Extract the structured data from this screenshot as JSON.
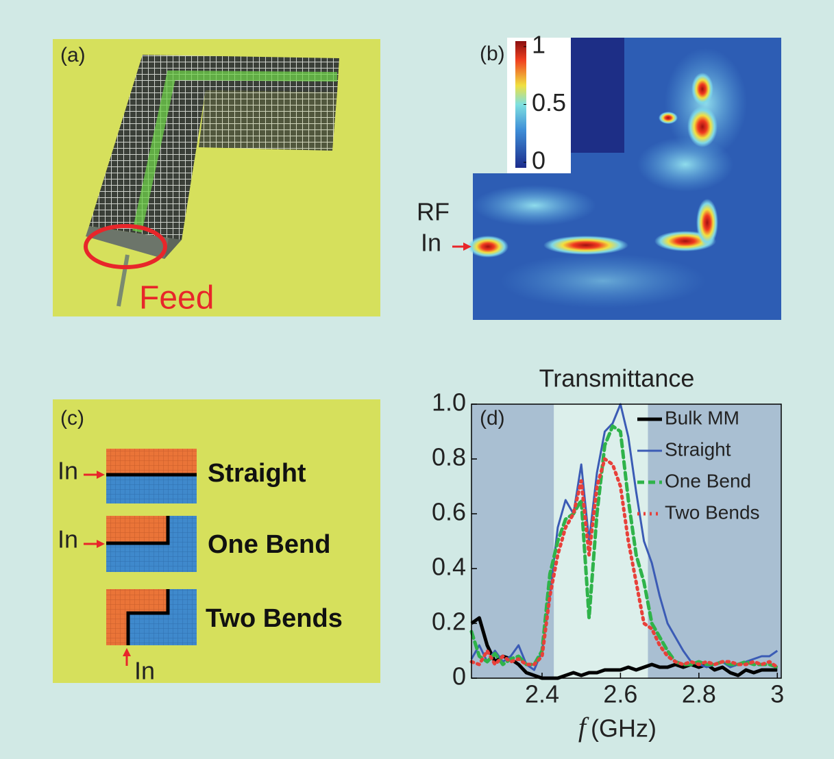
{
  "panels": {
    "a": {
      "label": "(a)",
      "annotation": "Feed"
    },
    "b": {
      "label": "(b)",
      "colorbar": {
        "lim": [
          0,
          1
        ],
        "ticks": [
          1,
          0.5,
          0
        ]
      },
      "input_label": [
        "RF",
        "In"
      ]
    },
    "c": {
      "label": "(c)",
      "rows": [
        {
          "input": "In",
          "name": "Straight"
        },
        {
          "input": "In",
          "name": "One Bend"
        },
        {
          "input": "In",
          "name": "Two Bends"
        }
      ]
    }
  },
  "chart_data": {
    "type": "line",
    "label": "(d)",
    "title": "Transmittance",
    "x_label": {
      "symbol": "f",
      "unit": "(GHz)"
    },
    "x": [
      2.22,
      2.24,
      2.26,
      2.28,
      2.3,
      2.32,
      2.34,
      2.36,
      2.38,
      2.4,
      2.42,
      2.44,
      2.46,
      2.48,
      2.5,
      2.52,
      2.54,
      2.56,
      2.58,
      2.6,
      2.62,
      2.64,
      2.66,
      2.68,
      2.7,
      2.72,
      2.74,
      2.76,
      2.78,
      2.8,
      2.82,
      2.84,
      2.86,
      2.88,
      2.9,
      2.92,
      2.94,
      2.96,
      2.98,
      3.0
    ],
    "series": [
      {
        "name": "Bulk MM",
        "color": "#000000",
        "values": [
          0.2,
          0.22,
          0.12,
          0.06,
          0.08,
          0.07,
          0.05,
          0.02,
          0.01,
          0,
          0,
          0,
          0.01,
          0.02,
          0.01,
          0.02,
          0.02,
          0.03,
          0.03,
          0.03,
          0.04,
          0.03,
          0.04,
          0.05,
          0.04,
          0.04,
          0.05,
          0.04,
          0.05,
          0.04,
          0.05,
          0.03,
          0.04,
          0.02,
          0.01,
          0.03,
          0.02,
          0.03,
          0.03,
          0.03
        ]
      },
      {
        "name": "Straight",
        "color": "#3b5bb5",
        "values": [
          0.07,
          0.12,
          0.06,
          0.1,
          0.06,
          0.08,
          0.12,
          0.05,
          0.03,
          0.1,
          0.3,
          0.55,
          0.65,
          0.6,
          0.78,
          0.5,
          0.75,
          0.9,
          0.93,
          1.0,
          0.88,
          0.68,
          0.5,
          0.42,
          0.3,
          0.2,
          0.15,
          0.1,
          0.06,
          0.05,
          0.04,
          0.05,
          0.06,
          0.04,
          0.05,
          0.06,
          0.07,
          0.08,
          0.08,
          0.1
        ]
      },
      {
        "name": "One Bend",
        "color": "#2fb34a",
        "values": [
          0.17,
          0.08,
          0.06,
          0.09,
          0.05,
          0.07,
          0.08,
          0.05,
          0.05,
          0.1,
          0.38,
          0.5,
          0.58,
          0.6,
          0.65,
          0.22,
          0.6,
          0.85,
          0.92,
          0.9,
          0.65,
          0.45,
          0.35,
          0.2,
          0.15,
          0.1,
          0.06,
          0.05,
          0.05,
          0.06,
          0.05,
          0.05,
          0.06,
          0.05,
          0.05,
          0.06,
          0.05,
          0.05,
          0.05,
          0.04
        ]
      },
      {
        "name": "Two Bends",
        "color": "#e8403a",
        "values": [
          0.06,
          0.05,
          0.1,
          0.05,
          0.08,
          0.06,
          0.07,
          0.05,
          0.05,
          0.08,
          0.3,
          0.45,
          0.55,
          0.6,
          0.72,
          0.45,
          0.7,
          0.8,
          0.78,
          0.7,
          0.5,
          0.35,
          0.2,
          0.18,
          0.12,
          0.08,
          0.06,
          0.05,
          0.06,
          0.05,
          0.06,
          0.05,
          0.06,
          0.06,
          0.05,
          0.05,
          0.06,
          0.05,
          0.06,
          0.04
        ]
      }
    ],
    "shaded_regions": [
      [
        2.22,
        2.43
      ],
      [
        2.67,
        3.01
      ]
    ],
    "shade_color": "#a9bfd2",
    "xlim": [
      2.22,
      3.01
    ],
    "ylim": [
      0,
      1
    ],
    "xticks": [
      2.4,
      2.6,
      2.8,
      3
    ],
    "yticks": [
      0,
      0.2,
      0.4,
      0.6,
      0.8,
      {
        "value": 1,
        "label": "1.0"
      }
    ],
    "legend": "top-right"
  }
}
